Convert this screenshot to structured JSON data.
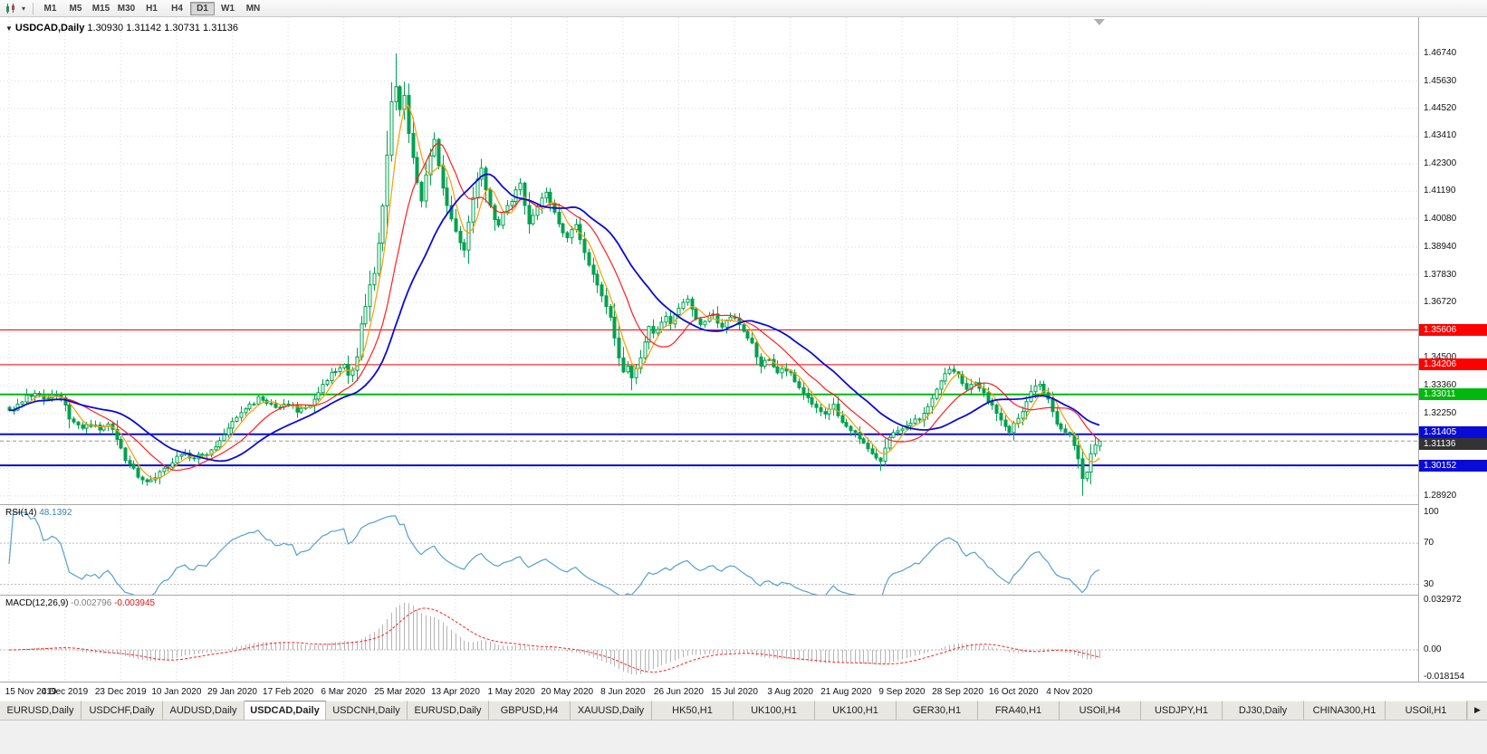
{
  "toolbar": {
    "timeframes": [
      "M1",
      "M5",
      "M15",
      "M30",
      "H1",
      "H4",
      "D1",
      "W1",
      "MN"
    ],
    "active_timeframe": "D1"
  },
  "chart": {
    "title_symbol": "USDCAD,Daily",
    "ohlc_text": "1.30930 1.31142 1.30731 1.31136"
  },
  "chart_data": {
    "type": "candlestick",
    "symbol": "USDCAD",
    "timeframe": "Daily",
    "current": {
      "open": 1.3093,
      "high": 1.31142,
      "low": 1.30731,
      "close": 1.31136
    },
    "y_range": [
      1.2859,
      1.482
    ],
    "y_ticks": [
      "1.46740",
      "1.45630",
      "1.44520",
      "1.43410",
      "1.42300",
      "1.41190",
      "1.40080",
      "1.38940",
      "1.37830",
      "1.36720",
      "1.35610",
      "1.34500",
      "1.33360",
      "1.32250",
      "1.31140",
      "1.30030",
      "1.28920"
    ],
    "x_labels": [
      "15 Nov 2019",
      "4 Dec 2019",
      "23 Dec 2019",
      "10 Jan 2020",
      "29 Jan 2020",
      "17 Feb 2020",
      "6 Mar 2020",
      "25 Mar 2020",
      "13 Apr 2020",
      "1 May 2020",
      "20 May 2020",
      "8 Jun 2020",
      "26 Jun 2020",
      "15 Jul 2020",
      "3 Aug 2020",
      "21 Aug 2020",
      "9 Sep 2020",
      "28 Sep 2020",
      "16 Oct 2020",
      "4 Nov 2020"
    ],
    "candles_per_gridline": 13,
    "num_candles": 255,
    "price_anchors": [
      [
        0,
        1.3237
      ],
      [
        2,
        1.3262
      ],
      [
        4,
        1.3298
      ],
      [
        6,
        1.3305
      ],
      [
        8,
        1.3282
      ],
      [
        10,
        1.33
      ],
      [
        12,
        1.3288
      ],
      [
        13,
        1.3258
      ],
      [
        15,
        1.319
      ],
      [
        17,
        1.3165
      ],
      [
        19,
        1.3172
      ],
      [
        21,
        1.3158
      ],
      [
        23,
        1.3182
      ],
      [
        25,
        1.312
      ],
      [
        26,
        1.3085
      ],
      [
        28,
        1.302
      ],
      [
        30,
        1.2968
      ],
      [
        33,
        1.2957
      ],
      [
        35,
        1.299
      ],
      [
        37,
        1.3008
      ],
      [
        39,
        1.3052
      ],
      [
        41,
        1.3065
      ],
      [
        43,
        1.3042
      ],
      [
        45,
        1.3058
      ],
      [
        47,
        1.3078
      ],
      [
        49,
        1.3115
      ],
      [
        51,
        1.3165
      ],
      [
        52,
        1.3192
      ],
      [
        54,
        1.3228
      ],
      [
        56,
        1.3262
      ],
      [
        58,
        1.3292
      ],
      [
        60,
        1.3265
      ],
      [
        62,
        1.3248
      ],
      [
        64,
        1.3262
      ],
      [
        65,
        1.3258
      ],
      [
        67,
        1.323
      ],
      [
        69,
        1.3248
      ],
      [
        71,
        1.3282
      ],
      [
        73,
        1.3342
      ],
      [
        75,
        1.339
      ],
      [
        77,
        1.3408
      ],
      [
        78,
        1.3422
      ],
      [
        79,
        1.3378
      ],
      [
        80,
        1.3398
      ],
      [
        81,
        1.3452
      ],
      [
        82,
        1.3585
      ],
      [
        83,
        1.3655
      ],
      [
        84,
        1.3742
      ],
      [
        85,
        1.3788
      ],
      [
        86,
        1.391
      ],
      [
        87,
        1.406
      ],
      [
        88,
        1.4265
      ],
      [
        89,
        1.448
      ],
      [
        90,
        1.454
      ],
      [
        91,
        1.4448
      ],
      [
        92,
        1.4505
      ],
      [
        93,
        1.4352
      ],
      [
        94,
        1.4255
      ],
      [
        95,
        1.4155
      ],
      [
        96,
        1.408
      ],
      [
        97,
        1.4185
      ],
      [
        98,
        1.4262
      ],
      [
        99,
        1.4328
      ],
      [
        100,
        1.4222
      ],
      [
        101,
        1.4132
      ],
      [
        102,
        1.4062
      ],
      [
        103,
        1.4008
      ],
      [
        104,
        1.3958
      ],
      [
        105,
        1.3912
      ],
      [
        106,
        1.3882
      ],
      [
        107,
        1.3995
      ],
      [
        108,
        1.4092
      ],
      [
        109,
        1.4168
      ],
      [
        110,
        1.4212
      ],
      [
        111,
        1.4125
      ],
      [
        112,
        1.4062
      ],
      [
        113,
        1.4005
      ],
      [
        114,
        1.3982
      ],
      [
        115,
        1.4035
      ],
      [
        116,
        1.4062
      ],
      [
        117,
        1.4078
      ],
      [
        118,
        1.4125
      ],
      [
        119,
        1.4152
      ],
      [
        120,
        1.4062
      ],
      [
        121,
        1.3988
      ],
      [
        122,
        1.4022
      ],
      [
        123,
        1.4058
      ],
      [
        124,
        1.4092
      ],
      [
        125,
        1.4115
      ],
      [
        126,
        1.4072
      ],
      [
        127,
        1.4035
      ],
      [
        128,
        1.3988
      ],
      [
        129,
        1.3952
      ],
      [
        130,
        1.3932
      ],
      [
        131,
        1.3965
      ],
      [
        132,
        1.3985
      ],
      [
        133,
        1.3925
      ],
      [
        134,
        1.3872
      ],
      [
        135,
        1.3822
      ],
      [
        136,
        1.3785
      ],
      [
        137,
        1.3742
      ],
      [
        138,
        1.3698
      ],
      [
        139,
        1.3655
      ],
      [
        140,
        1.3612
      ],
      [
        141,
        1.3528
      ],
      [
        142,
        1.3448
      ],
      [
        143,
        1.3392
      ],
      [
        144,
        1.3415
      ],
      [
        145,
        1.3368
      ],
      [
        146,
        1.3405
      ],
      [
        147,
        1.3448
      ],
      [
        148,
        1.3512
      ],
      [
        149,
        1.3575
      ],
      [
        150,
        1.3548
      ],
      [
        151,
        1.3562
      ],
      [
        152,
        1.3592
      ],
      [
        153,
        1.3615
      ],
      [
        154,
        1.3585
      ],
      [
        155,
        1.3622
      ],
      [
        156,
        1.3648
      ],
      [
        157,
        1.3672
      ],
      [
        158,
        1.3685
      ],
      [
        159,
        1.3645
      ],
      [
        160,
        1.3605
      ],
      [
        161,
        1.3582
      ],
      [
        162,
        1.3595
      ],
      [
        163,
        1.3618
      ],
      [
        164,
        1.3625
      ],
      [
        165,
        1.3588
      ],
      [
        166,
        1.3572
      ],
      [
        167,
        1.3598
      ],
      [
        168,
        1.3612
      ],
      [
        169,
        1.3608
      ],
      [
        170,
        1.3582
      ],
      [
        171,
        1.3555
      ],
      [
        172,
        1.3528
      ],
      [
        173,
        1.3508
      ],
      [
        174,
        1.3452
      ],
      [
        175,
        1.3415
      ],
      [
        176,
        1.3438
      ],
      [
        177,
        1.3442
      ],
      [
        178,
        1.3412
      ],
      [
        179,
        1.3388
      ],
      [
        180,
        1.3405
      ],
      [
        181,
        1.3395
      ],
      [
        182,
        1.3388
      ],
      [
        183,
        1.3352
      ],
      [
        184,
        1.3328
      ],
      [
        185,
        1.3305
      ],
      [
        186,
        1.3288
      ],
      [
        187,
        1.3262
      ],
      [
        188,
        1.3248
      ],
      [
        189,
        1.3232
      ],
      [
        190,
        1.3222
      ],
      [
        191,
        1.3242
      ],
      [
        192,
        1.3262
      ],
      [
        193,
        1.3215
      ],
      [
        194,
        1.3188
      ],
      [
        195,
        1.3172
      ],
      [
        196,
        1.3155
      ],
      [
        197,
        1.3148
      ],
      [
        198,
        1.3122
      ],
      [
        199,
        1.3105
      ],
      [
        200,
        1.3082
      ],
      [
        201,
        1.3062
      ],
      [
        202,
        1.3045
      ],
      [
        203,
        1.3032
      ],
      [
        204,
        1.3085
      ],
      [
        205,
        1.3128
      ],
      [
        206,
        1.3148
      ],
      [
        207,
        1.3155
      ],
      [
        208,
        1.3162
      ],
      [
        209,
        1.3175
      ],
      [
        210,
        1.3185
      ],
      [
        211,
        1.3202
      ],
      [
        212,
        1.3198
      ],
      [
        213,
        1.3225
      ],
      [
        214,
        1.3252
      ],
      [
        215,
        1.3285
      ],
      [
        216,
        1.3322
      ],
      [
        217,
        1.3355
      ],
      [
        218,
        1.3385
      ],
      [
        219,
        1.3402
      ],
      [
        220,
        1.3392
      ],
      [
        221,
        1.3382
      ],
      [
        222,
        1.3345
      ],
      [
        223,
        1.3322
      ],
      [
        224,
        1.3342
      ],
      [
        225,
        1.3348
      ],
      [
        226,
        1.3325
      ],
      [
        227,
        1.3308
      ],
      [
        228,
        1.3272
      ],
      [
        229,
        1.3258
      ],
      [
        230,
        1.3225
      ],
      [
        231,
        1.3198
      ],
      [
        232,
        1.3172
      ],
      [
        233,
        1.3148
      ],
      [
        234,
        1.3185
      ],
      [
        235,
        1.3205
      ],
      [
        236,
        1.3232
      ],
      [
        237,
        1.3272
      ],
      [
        238,
        1.3312
      ],
      [
        239,
        1.3335
      ],
      [
        240,
        1.3342
      ],
      [
        241,
        1.3308
      ],
      [
        242,
        1.3282
      ],
      [
        243,
        1.3232
      ],
      [
        244,
        1.3182
      ],
      [
        245,
        1.3162
      ],
      [
        246,
        1.3148
      ],
      [
        247,
        1.3142
      ],
      [
        248,
        1.3095
      ],
      [
        249,
        1.3042
      ],
      [
        250,
        1.2962
      ],
      [
        251,
        1.2988
      ],
      [
        252,
        1.3062
      ],
      [
        253,
        1.3098
      ],
      [
        254,
        1.31136
      ]
    ],
    "forced_highs": [
      [
        90,
        1.4674
      ],
      [
        92,
        1.456
      ]
    ],
    "forced_lows": [
      [
        33,
        1.2952
      ],
      [
        145,
        1.3318
      ],
      [
        203,
        1.2994
      ],
      [
        250,
        1.2893
      ]
    ],
    "levels": [
      {
        "price": 1.35606,
        "label": "1.35606",
        "color": "#ff0000",
        "width": 1
      },
      {
        "price": 1.34206,
        "label": "1.34206",
        "color": "#ff0000",
        "width": 1
      },
      {
        "price": 1.33011,
        "label": "1.33011",
        "color": "#00b80e",
        "width": 2
      },
      {
        "price": 1.31405,
        "label": "1.31405",
        "color": "#0b0bd7",
        "width": 2
      },
      {
        "price": 1.30152,
        "label": "1.30152",
        "color": "#0b0bd7",
        "width": 2
      }
    ],
    "current_price_label": {
      "label": "1.31136",
      "bg": "#333333"
    },
    "candle_colors": {
      "up_fill": "#ffffff",
      "down_fill": "#00a14f",
      "outline": "#00a14f"
    },
    "moving_averages": [
      {
        "name": "fast",
        "type": "sma",
        "period": 5,
        "color": "#ff9c00",
        "width": 1.2
      },
      {
        "name": "medium",
        "type": "sma",
        "period": 13,
        "color": "#ff1f1f",
        "width": 1.2
      },
      {
        "name": "slow",
        "type": "sma",
        "period": 25,
        "color": "#0b0bd7",
        "width": 1.8
      }
    ],
    "indicators": {
      "rsi": {
        "label": "RSI(14)",
        "value": "48.1392",
        "period": 14,
        "levels": [
          70,
          30
        ],
        "scale_ticks": [
          "100",
          "70",
          "30"
        ],
        "color": "#56a0d3"
      },
      "macd": {
        "label": "MACD(12,26,9)",
        "value_main": "-0.002796",
        "value_signal": "-0.003945",
        "fast": 12,
        "slow": 26,
        "signal": 9,
        "scale_ticks": [
          "0.032972",
          "0.00",
          "-0.018154"
        ],
        "histogram_color": "#b4b4b4",
        "signal_color": "#ff1f1f"
      }
    }
  },
  "tabs": {
    "items": [
      "EURUSD,Daily",
      "USDCHF,Daily",
      "AUDUSD,Daily",
      "USDCAD,Daily",
      "USDCNH,Daily",
      "EURUSD,Daily",
      "GBPUSD,H4",
      "XAUUSD,Daily",
      "HK50,H1",
      "UK100,H1",
      "UK100,H1",
      "GER30,H1",
      "FRA40,H1",
      "USOil,H4",
      "USDJPY,H1",
      "DJ30,Daily",
      "CHINA300,H1",
      "USOil,H1"
    ],
    "active_index": 3,
    "scroll_arrow": "▶"
  }
}
